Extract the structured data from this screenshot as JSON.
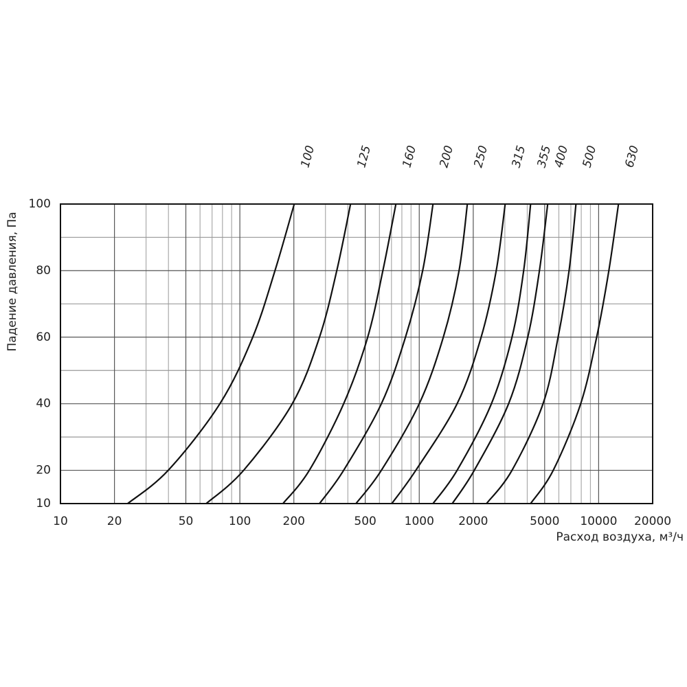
{
  "chart_data": {
    "type": "line",
    "x_label": "Расход воздуха, м³/ч",
    "y_label": "Падение давления, Па",
    "xscale": "log",
    "xlim": [
      10,
      20000
    ],
    "xticks": [
      10,
      20,
      50,
      100,
      200,
      500,
      1000,
      2000,
      5000,
      10000,
      20000
    ],
    "x_minor_gridlines": [
      30,
      40,
      60,
      70,
      80,
      90,
      300,
      400,
      600,
      700,
      800,
      900,
      3000,
      4000,
      6000,
      7000,
      8000,
      9000
    ],
    "ylim": [
      10,
      100
    ],
    "yticks": [
      10,
      20,
      40,
      60,
      80,
      100
    ],
    "y_minor_gridlines": [
      30,
      50,
      70,
      90
    ],
    "grid": true,
    "color": "#111111",
    "series": [
      {
        "name": "100",
        "x": [
          23.7,
          39.9,
          77.4,
          118,
          157,
          201
        ],
        "y": [
          10,
          20,
          40,
          60,
          80,
          100
        ]
      },
      {
        "name": "125",
        "x": [
          65,
          105,
          196,
          278,
          347,
          414
        ],
        "y": [
          10,
          20,
          40,
          60,
          80,
          100
        ]
      },
      {
        "name": "160",
        "x": [
          174,
          244,
          379,
          516,
          627,
          741
        ],
        "y": [
          10,
          20,
          40,
          60,
          80,
          100
        ]
      },
      {
        "name": "200",
        "x": [
          278,
          379,
          615,
          838,
          1045,
          1193
        ],
        "y": [
          10,
          20,
          40,
          60,
          80,
          100
        ]
      },
      {
        "name": "250",
        "x": [
          444,
          615,
          1000,
          1362,
          1667,
          1854
        ],
        "y": [
          10,
          20,
          40,
          60,
          80,
          100
        ]
      },
      {
        "name": "315",
        "x": [
          703,
          957,
          1626,
          2213,
          2686,
          3013
        ],
        "y": [
          10,
          20,
          40,
          60,
          80,
          100
        ]
      },
      {
        "name": "355",
        "x": [
          1193,
          1626,
          2525,
          3289,
          3820,
          4176
        ],
        "y": [
          10,
          20,
          40,
          60,
          80,
          100
        ]
      },
      {
        "name": "400",
        "x": [
          1528,
          2027,
          3148,
          4027,
          4677,
          5200
        ],
        "y": [
          10,
          20,
          40,
          60,
          80,
          100
        ]
      },
      {
        "name": "500",
        "x": [
          2371,
          3289,
          4898,
          5943,
          6842,
          7475
        ],
        "y": [
          10,
          20,
          40,
          60,
          80,
          100
        ]
      },
      {
        "name": "630",
        "x": [
          4176,
          5585,
          7943,
          9750,
          11400,
          12900
        ],
        "y": [
          10,
          20,
          40,
          60,
          80,
          100
        ]
      }
    ]
  }
}
